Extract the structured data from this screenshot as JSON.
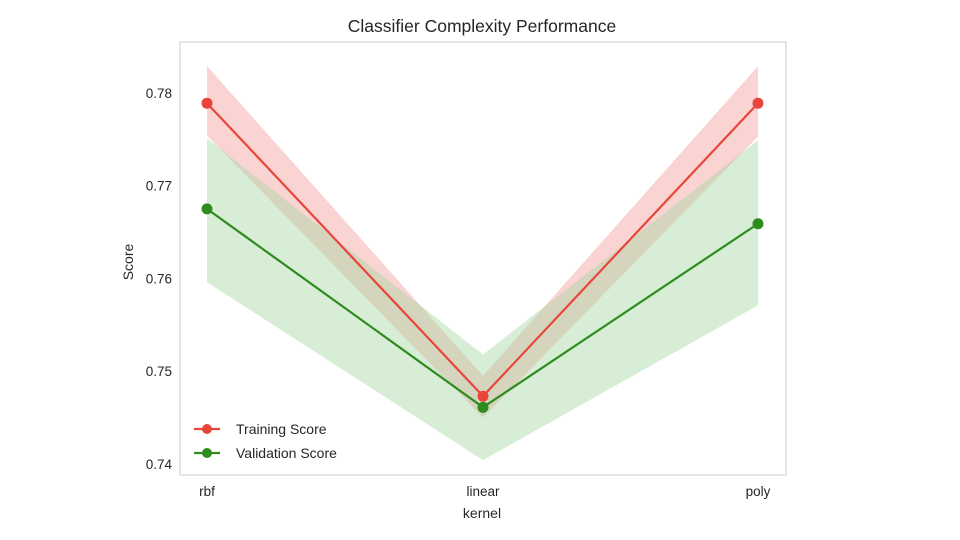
{
  "chart_data": {
    "type": "line",
    "title": "Classifier Complexity Performance",
    "xlabel": "kernel",
    "ylabel": "Score",
    "categories": [
      "rbf",
      "linear",
      "poly"
    ],
    "ylim": [
      0.7388,
      0.7855
    ],
    "yticks": [
      0.74,
      0.75,
      0.76,
      0.77,
      0.78
    ],
    "ytick_labels": [
      "0.74",
      "0.75",
      "0.76",
      "0.77",
      "0.78"
    ],
    "grid": false,
    "legend_position": "lower-left",
    "series": [
      {
        "name": "Training Score",
        "color": "#e8463a",
        "band_color": "#f4a9a8",
        "values": [
          0.7789,
          0.7473,
          0.7789
        ],
        "band_upper": [
          0.7829,
          0.7495,
          0.7829
        ],
        "band_lower": [
          0.7754,
          0.745,
          0.7753
        ]
      },
      {
        "name": "Validation Score",
        "color": "#2e8b1e",
        "band_color": "#a9d6a4",
        "values": [
          0.7675,
          0.7461,
          0.7659
        ],
        "band_upper": [
          0.7751,
          0.7518,
          0.7749
        ],
        "band_lower": [
          0.7596,
          0.7404,
          0.7571
        ]
      }
    ]
  }
}
